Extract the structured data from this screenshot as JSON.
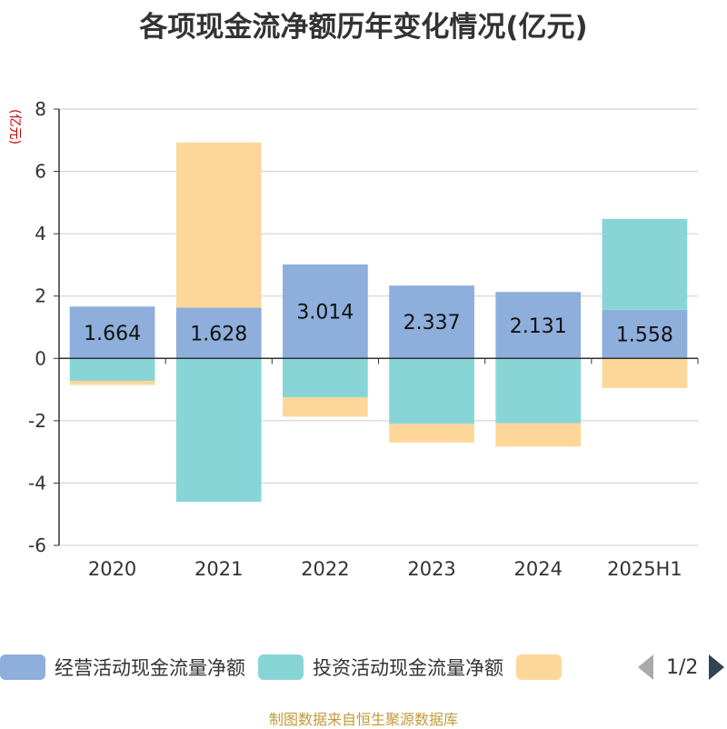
{
  "title": "各项现金流净额历年变化情况(亿元)",
  "source": "制图数据来自恒生聚源数据库",
  "legend": {
    "items": [
      {
        "label": "经营活动现金流量净额",
        "color": "#8eaedb"
      },
      {
        "label": "投资活动现金流量净额",
        "color": "#88d5d8"
      },
      {
        "label": "",
        "color": "#fdd799"
      }
    ],
    "page": "1/2"
  },
  "chart_data": {
    "type": "bar",
    "stacked": true,
    "categories": [
      "2020",
      "2021",
      "2022",
      "2023",
      "2024",
      "2025H1"
    ],
    "ylabel": "(亿元)",
    "ylim": [
      -6,
      8
    ],
    "yticks": [
      8,
      6,
      4,
      2,
      0,
      -2,
      -4,
      -6
    ],
    "grid": true,
    "legend_position": "bottom",
    "series": [
      {
        "name": "经营活动现金流量净额",
        "color": "#8eaedb",
        "values": [
          1.664,
          1.628,
          3.014,
          2.337,
          2.131,
          1.558
        ]
      },
      {
        "name": "投资活动现金流量净额",
        "color": "#88d5d8",
        "values": [
          -0.72,
          -4.6,
          -1.25,
          -2.1,
          -2.08,
          2.92
        ]
      },
      {
        "color": "#fdd799",
        "values": [
          -0.13,
          5.3,
          -0.62,
          -0.6,
          -0.75,
          -0.95
        ]
      }
    ],
    "data_labels": [
      "1.664",
      "1.628",
      "3.014",
      "2.337",
      "2.131",
      "1.558"
    ]
  }
}
